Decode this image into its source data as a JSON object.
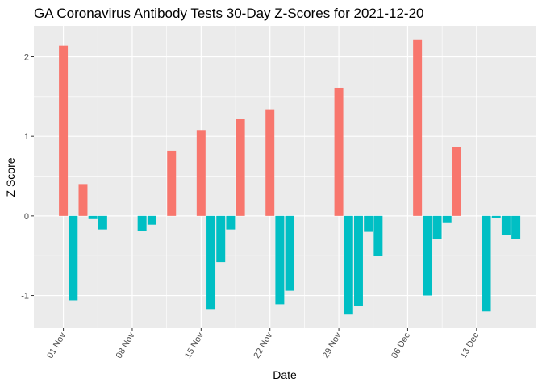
{
  "chart_data": {
    "type": "bar",
    "title": "GA Coronavirus Antibody Tests 30-Day Z-Scores for 2021-12-20",
    "xlabel": "Date",
    "ylabel": "Z Score",
    "xlim": [
      "2021-10-29",
      "2021-12-19"
    ],
    "ylim": [
      -1.41,
      2.39
    ],
    "grid": true,
    "legend": "none",
    "x_ticks": [
      {
        "date": "2021-11-01",
        "label": "01 Nov"
      },
      {
        "date": "2021-11-08",
        "label": "08 Nov"
      },
      {
        "date": "2021-11-15",
        "label": "15 Nov"
      },
      {
        "date": "2021-11-22",
        "label": "22 Nov"
      },
      {
        "date": "2021-11-29",
        "label": "29 Nov"
      },
      {
        "date": "2021-12-06",
        "label": "06 Dec"
      },
      {
        "date": "2021-12-13",
        "label": "13 Dec"
      }
    ],
    "y_ticks": [
      {
        "value": 2,
        "label": "2"
      },
      {
        "value": 1,
        "label": "1"
      },
      {
        "value": 0,
        "label": "0"
      },
      {
        "value": -1,
        "label": "-1"
      }
    ],
    "colors": {
      "positive": "#F8766D",
      "negative": "#00BFC4",
      "panel": "#EBEBEB",
      "grid": "#FFFFFF"
    },
    "x": [
      "2021-11-01",
      "2021-11-02",
      "2021-11-03",
      "2021-11-04",
      "2021-11-05",
      "2021-11-09",
      "2021-11-10",
      "2021-11-12",
      "2021-11-15",
      "2021-11-16",
      "2021-11-17",
      "2021-11-18",
      "2021-11-19",
      "2021-11-22",
      "2021-11-23",
      "2021-11-24",
      "2021-11-29",
      "2021-11-30",
      "2021-12-01",
      "2021-12-02",
      "2021-12-03",
      "2021-12-07",
      "2021-12-08",
      "2021-12-09",
      "2021-12-10",
      "2021-12-11",
      "2021-12-14",
      "2021-12-15",
      "2021-12-16",
      "2021-12-17"
    ],
    "values": [
      2.14,
      -1.06,
      0.4,
      -0.04,
      -0.17,
      -0.19,
      -0.11,
      0.82,
      1.08,
      -1.17,
      -0.58,
      -0.17,
      1.22,
      1.34,
      -1.11,
      -0.94,
      1.61,
      -1.24,
      -1.13,
      -0.2,
      -0.5,
      2.22,
      -1.0,
      -0.29,
      -0.08,
      0.87,
      -1.2,
      -0.03,
      -0.24,
      -0.29
    ]
  }
}
